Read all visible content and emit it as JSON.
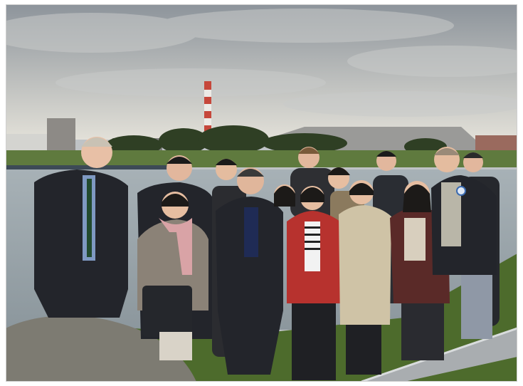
{
  "scene": {
    "kind": "photograph",
    "subject": "group-photo",
    "setting": "riverbank-industrial"
  },
  "colors": {
    "sky_top": "#8d949b",
    "sky_bottom": "#e2e0d8",
    "water": "#9aa5ab",
    "far_bank": "#5f7a3e",
    "trees": "#2f3f24",
    "chimney_red": "#c6473b",
    "chimney_white": "#eceae6",
    "grass": "#4d6b2c",
    "rock": "#7d7b72",
    "guardrail": "#a9adb0",
    "red_jacket": "#b7322e",
    "beige_coat": "#cfc3a6",
    "dark_suit": "#23252b",
    "maroon_cardigan": "#5a2a28",
    "pink_scarf": "#d9a3a6"
  },
  "people_count": 15
}
